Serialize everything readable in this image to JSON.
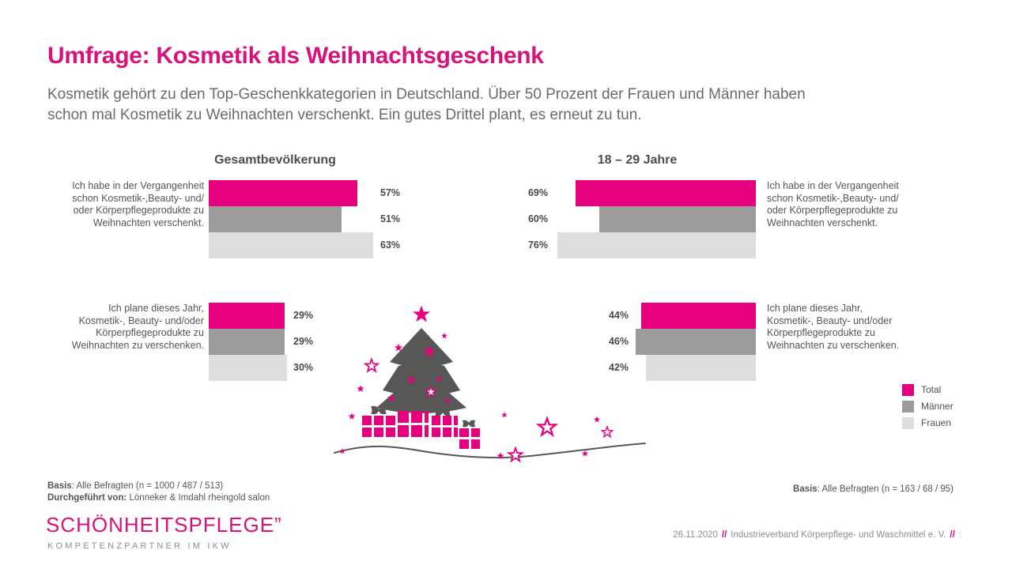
{
  "slide": {
    "title": "Umfrage: Kosmetik als Weihnachtsgeschenk",
    "subtitle": "Kosmetik gehört zu den Top-Geschenkkategorien in Deutschland. Über 50 Prozent der Frauen und Männer haben\nschon mal Kosmetik zu Weihnachten verschenkt. Ein gutes Drittel plant, es erneut zu tun."
  },
  "colors": {
    "accent": "#E6007E",
    "title_pink": "#D9117A",
    "maenner_gray": "#9B9B9B",
    "frauen_gray": "#DEDEDE",
    "tree_gray": "#575756"
  },
  "questions": {
    "past": "Ich habe in der Vergangenheit\nschon Kosmetik-,Beauty- und/\noder Körperpflegeprodukte zu\nWeihnachten verschenkt.",
    "plan": "Ich plane dieses Jahr,\nKosmetik-, Beauty- und/oder\nKörperpflegeprodukte zu\nWeihnachten zu verschenken."
  },
  "charts": {
    "left": {
      "title": "Gesamtbevölkerung",
      "past": {
        "total": {
          "pct": 57,
          "label": "57%"
        },
        "maenner": {
          "pct": 51,
          "label": "51%"
        },
        "frauen": {
          "pct": 63,
          "label": "63%"
        }
      },
      "plan": {
        "total": {
          "pct": 29,
          "label": "29%"
        },
        "maenner": {
          "pct": 29,
          "label": "29%"
        },
        "frauen": {
          "pct": 30,
          "label": "30%"
        }
      }
    },
    "right": {
      "title": "18 – 29 Jahre",
      "past": {
        "total": {
          "pct": 69,
          "label": "69%"
        },
        "maenner": {
          "pct": 60,
          "label": "60%"
        },
        "frauen": {
          "pct": 76,
          "label": "76%"
        }
      },
      "plan": {
        "total": {
          "pct": 44,
          "label": "44%"
        },
        "maenner": {
          "pct": 46,
          "label": "46%"
        },
        "frauen": {
          "pct": 42,
          "label": "42%"
        }
      }
    }
  },
  "legend": {
    "total": "Total",
    "maenner": "Männer",
    "frauen": "Frauen"
  },
  "footnotes": {
    "left_basis_label": "Basis",
    "left_basis_text": ": Alle Befragten (n = 1000 / 487 / 513)",
    "left_conducted_label": "Durchgeführt von:",
    "left_conducted_text": " Lönneker & Imdahl rheingold salon",
    "right_basis_label": "Basis",
    "right_basis_text": ": Alle Befragten (n = 163 / 68 / 95)"
  },
  "footer": {
    "logo_main": "SCHÖNHEITSPFLEGE”",
    "logo_sub": "KOMPETENZPARTNER IM IKW",
    "date": "26.11.2020",
    "separator": "//",
    "org": "Industrieverband Körperpflege- und Waschmittel e. V.",
    "page_hint": ":"
  },
  "chart_data": [
    {
      "type": "bar",
      "orientation": "horizontal",
      "title": "Gesamtbevölkerung",
      "categories": [
        "Ich habe in der Vergangenheit schon Kosmetik-, Beauty- und/oder Körperpflegeprodukte zu Weihnachten verschenkt.",
        "Ich plane dieses Jahr, Kosmetik-, Beauty- und/oder Körperpflegeprodukte zu Weihnachten zu verschenken."
      ],
      "series": [
        {
          "name": "Total",
          "values": [
            57,
            29
          ],
          "color": "#E6007E"
        },
        {
          "name": "Männer",
          "values": [
            51,
            29
          ],
          "color": "#9B9B9B"
        },
        {
          "name": "Frauen",
          "values": [
            63,
            30
          ],
          "color": "#DEDEDE"
        }
      ],
      "unit": "%",
      "xlim": [
        0,
        100
      ],
      "grid": false,
      "legend_position": "bottom-right",
      "note": "Basis: Alle Befragten (n = 1000 / 487 / 513)"
    },
    {
      "type": "bar",
      "orientation": "horizontal",
      "title": "18 – 29 Jahre",
      "categories": [
        "Ich habe in der Vergangenheit schon Kosmetik-, Beauty- und/oder Körperpflegeprodukte zu Weihnachten verschenkt.",
        "Ich plane dieses Jahr, Kosmetik-, Beauty- und/oder Körperpflegeprodukte zu Weihnachten zu verschenken."
      ],
      "series": [
        {
          "name": "Total",
          "values": [
            69,
            44
          ],
          "color": "#E6007E"
        },
        {
          "name": "Männer",
          "values": [
            60,
            46
          ],
          "color": "#9B9B9B"
        },
        {
          "name": "Frauen",
          "values": [
            76,
            42
          ],
          "color": "#DEDEDE"
        }
      ],
      "unit": "%",
      "xlim": [
        0,
        100
      ],
      "grid": false,
      "legend_position": "bottom-right",
      "note": "Basis: Alle Befragten (n = 163 / 68 / 95)"
    }
  ]
}
